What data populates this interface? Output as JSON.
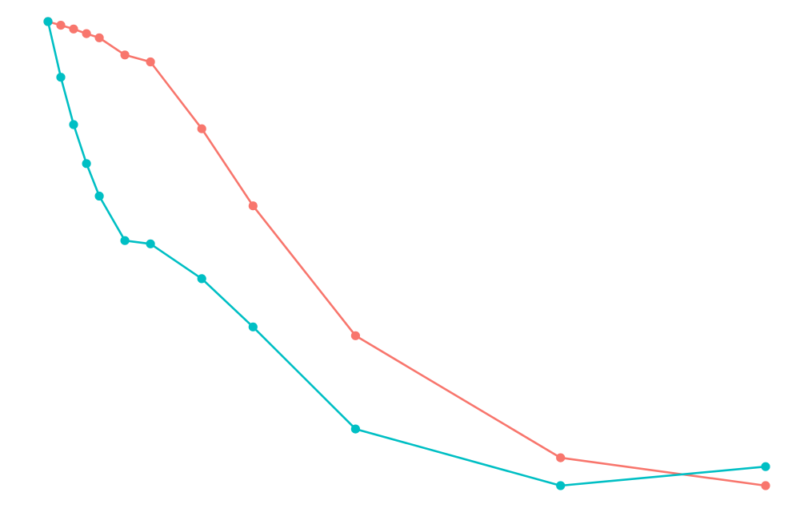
{
  "chart_data": {
    "type": "line",
    "title": "",
    "xlabel": "",
    "ylabel": "",
    "grid": false,
    "legend": "none",
    "xlim": [
      1,
      57
    ],
    "ylim": [
      0,
      100
    ],
    "series": [
      {
        "color": "#F8766D",
        "points": [
          {
            "x": 1,
            "y": 100.0
          },
          {
            "x": 2,
            "y": 99.2
          },
          {
            "x": 3,
            "y": 98.4
          },
          {
            "x": 4,
            "y": 97.4
          },
          {
            "x": 5,
            "y": 96.5
          },
          {
            "x": 7,
            "y": 92.8
          },
          {
            "x": 9,
            "y": 91.3
          },
          {
            "x": 13,
            "y": 76.9
          },
          {
            "x": 17,
            "y": 60.3
          },
          {
            "x": 25,
            "y": 32.3
          },
          {
            "x": 41,
            "y": 6.0
          },
          {
            "x": 57,
            "y": 0.0
          }
        ]
      },
      {
        "color": "#00BFC4",
        "points": [
          {
            "x": 1,
            "y": 100.0
          },
          {
            "x": 2,
            "y": 88.0
          },
          {
            "x": 3,
            "y": 77.8
          },
          {
            "x": 4,
            "y": 69.4
          },
          {
            "x": 5,
            "y": 62.4
          },
          {
            "x": 7,
            "y": 52.8
          },
          {
            "x": 9,
            "y": 52.1
          },
          {
            "x": 13,
            "y": 44.6
          },
          {
            "x": 17,
            "y": 34.2
          },
          {
            "x": 25,
            "y": 12.2
          },
          {
            "x": 41,
            "y": 0.0
          },
          {
            "x": 57,
            "y": 4.1
          }
        ]
      }
    ]
  }
}
